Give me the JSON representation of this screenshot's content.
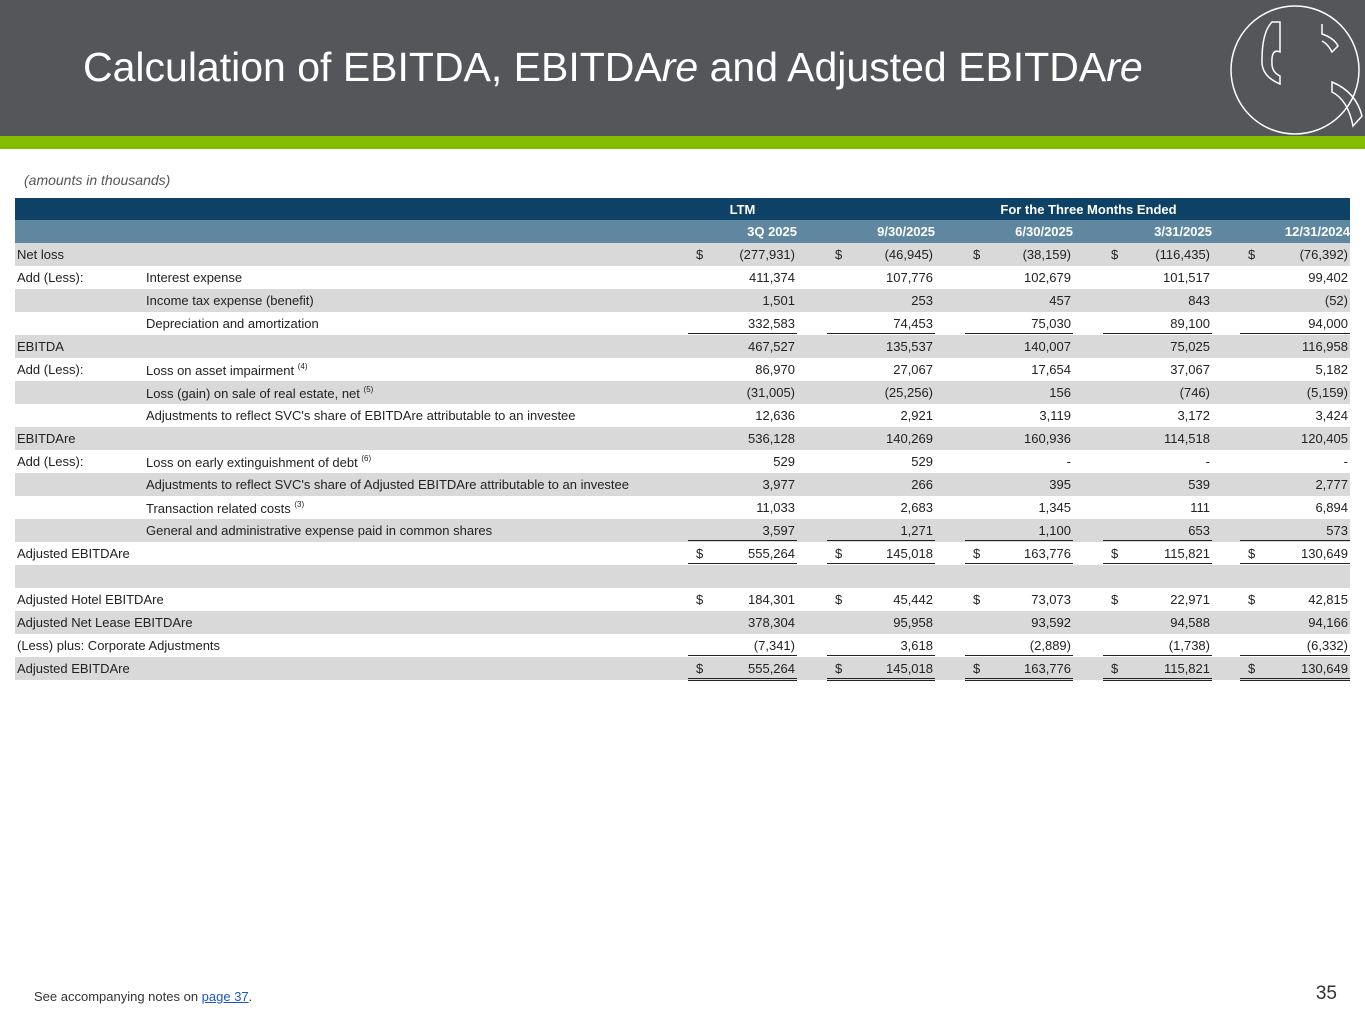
{
  "header": {
    "title_parts": [
      "Calculation of EBITDA, EBITDA",
      "re",
      " and Adjusted EBITDA",
      "re"
    ]
  },
  "amounts_note": "(amounts in thousands)",
  "table": {
    "group_headers": {
      "ltm": "LTM",
      "three_months": "For the Three Months Ended"
    },
    "columns": [
      "3Q 2025",
      "9/30/2025",
      "6/30/2025",
      "3/31/2025",
      "12/31/2024"
    ],
    "rows": [
      {
        "l1": "Net loss",
        "l2": "",
        "fn": "",
        "dollar": true,
        "values": [
          "(277,931)",
          "(46,945)",
          "(38,159)",
          "(116,435)",
          "(76,392)"
        ]
      },
      {
        "l1": "Add (Less):",
        "l2": "Interest expense",
        "fn": "",
        "dollar": false,
        "values": [
          "411,374",
          "107,776",
          "102,679",
          "101,517",
          "99,402"
        ]
      },
      {
        "l1": "",
        "l2": "Income tax expense (benefit)",
        "fn": "",
        "dollar": false,
        "values": [
          "1,501",
          "253",
          "457",
          "843",
          "(52)"
        ]
      },
      {
        "l1": "",
        "l2": "Depreciation and amortization",
        "fn": "",
        "dollar": false,
        "values": [
          "332,583",
          "74,453",
          "75,030",
          "89,100",
          "94,000"
        ]
      },
      {
        "l1": "EBITDA",
        "l2": "",
        "fn": "",
        "dollar": false,
        "values": [
          "467,527",
          "135,537",
          "140,007",
          "75,025",
          "116,958"
        ]
      },
      {
        "l1": "Add (Less):",
        "l2": "Loss on asset impairment",
        "fn": "(4)",
        "dollar": false,
        "values": [
          "86,970",
          "27,067",
          "17,654",
          "37,067",
          "5,182"
        ]
      },
      {
        "l1": "",
        "l2": "Loss (gain) on sale of real estate, net",
        "fn": "(5)",
        "dollar": false,
        "values": [
          "(31,005)",
          "(25,256)",
          "156",
          "(746)",
          "(5,159)"
        ]
      },
      {
        "l1": "",
        "l2": "Adjustments to reflect SVC's share of EBITDAre  attributable to an investee",
        "fn": "",
        "dollar": false,
        "values": [
          "12,636",
          "2,921",
          "3,119",
          "3,172",
          "3,424"
        ]
      },
      {
        "l1": "EBITDAre",
        "l2": "",
        "fn": "",
        "dollar": false,
        "values": [
          "536,128",
          "140,269",
          "160,936",
          "114,518",
          "120,405"
        ]
      },
      {
        "l1": "Add (Less):",
        "l2": "Loss on early extinguishment of debt",
        "fn": "(6)",
        "dollar": false,
        "values": [
          "529",
          "529",
          "-",
          "-",
          "-"
        ]
      },
      {
        "l1": "",
        "l2": "Adjustments to reflect SVC's share of Adjusted EBITDAre  attributable to an investee",
        "fn": "",
        "dollar": false,
        "values": [
          "3,977",
          "266",
          "395",
          "539",
          "2,777"
        ]
      },
      {
        "l1": "",
        "l2": "Transaction related costs",
        "fn": "(3)",
        "dollar": false,
        "values": [
          "11,033",
          "2,683",
          "1,345",
          "111",
          "6,894"
        ]
      },
      {
        "l1": "",
        "l2": "General and administrative expense paid in common shares",
        "fn": "",
        "dollar": false,
        "values": [
          "3,597",
          "1,271",
          "1,100",
          "653",
          "573"
        ]
      },
      {
        "l1": "Adjusted EBITDAre",
        "l2": "",
        "fn": "",
        "dollar": true,
        "values": [
          "555,264",
          "145,018",
          "163,776",
          "115,821",
          "130,649"
        ]
      },
      {
        "l1": "",
        "l2": "",
        "fn": "",
        "dollar": false,
        "values": [
          "",
          "",
          "",
          "",
          ""
        ]
      },
      {
        "l1": "Adjusted Hotel EBITDAre",
        "l2": "",
        "fn": "",
        "dollar": true,
        "values": [
          "184,301",
          "45,442",
          "73,073",
          "22,971",
          "42,815"
        ]
      },
      {
        "l1": "Adjusted Net Lease EBITDAre",
        "l2": "",
        "fn": "",
        "dollar": false,
        "values": [
          "378,304",
          "95,958",
          "93,592",
          "94,588",
          "94,166"
        ]
      },
      {
        "l1": "(Less) plus: Corporate Adjustments",
        "l2": "",
        "fn": "",
        "dollar": false,
        "values": [
          "(7,341)",
          "3,618",
          "(2,889)",
          "(1,738)",
          "(6,332)"
        ]
      },
      {
        "l1": "Adjusted EBITDAre",
        "l2": "",
        "fn": "",
        "dollar": true,
        "values": [
          "555,264",
          "145,018",
          "163,776",
          "115,821",
          "130,649"
        ]
      }
    ],
    "dollar_sign": "$"
  },
  "footer": {
    "prefix": "See accompanying notes on ",
    "link": "page 37",
    "suffix": ".",
    "page_number": "35"
  },
  "colors": {
    "topbar": "#54565a",
    "accent": "#84bd00",
    "header_dark": "#0d4266",
    "header_light": "#5f88a0",
    "row_alt": "#d9d9d9"
  }
}
